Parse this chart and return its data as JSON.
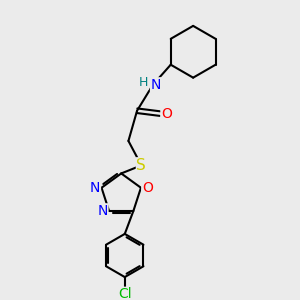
{
  "background_color": "#ebebeb",
  "bond_color": "#000000",
  "atom_colors": {
    "N": "#0000ff",
    "O": "#ff0000",
    "S": "#cccc00",
    "Cl": "#00bb00",
    "H": "#008080",
    "C": "#000000"
  },
  "font_size": 10,
  "lw": 1.5
}
